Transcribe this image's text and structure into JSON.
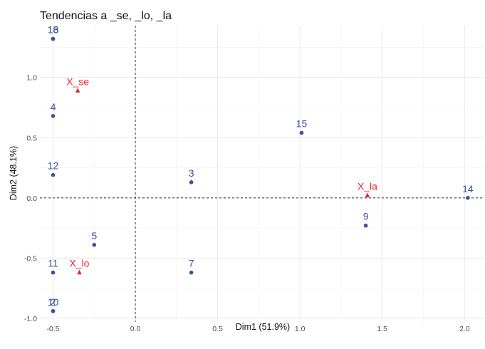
{
  "chart_data": {
    "type": "scatter",
    "title": "Tendencias a _se, _lo, _la",
    "xlabel": "Dim1 (51.9%)",
    "ylabel": "Dim2 (48.1%)",
    "xlim": [
      -0.58,
      2.12
    ],
    "ylim": [
      -1.03,
      1.43
    ],
    "x_ticks": [
      -0.5,
      0.0,
      0.5,
      1.0,
      1.5,
      2.0
    ],
    "x_tick_labels": [
      "-0.5",
      "0.0",
      "0.5",
      "1.0",
      "1.5",
      "2.0"
    ],
    "y_ticks": [
      -1.0,
      -0.5,
      0.0,
      0.5,
      1.0
    ],
    "y_tick_labels": [
      "-1.0",
      "-0.5",
      "0.0",
      "0.5",
      "1.0"
    ],
    "grid": true,
    "reference_lines": {
      "x": 0,
      "y": 0
    },
    "series": [
      {
        "color": "#3753a0",
        "marker": "circle",
        "points": [
          {
            "label": "16",
            "x": -0.5,
            "y": 1.32
          },
          {
            "label": "13",
            "x": -0.5,
            "y": 1.32
          },
          {
            "label": "4",
            "x": -0.5,
            "y": 0.68
          },
          {
            "label": "12",
            "x": -0.5,
            "y": 0.19
          },
          {
            "label": "11",
            "x": -0.5,
            "y": -0.62
          },
          {
            "label": "10",
            "x": -0.5,
            "y": -0.94
          },
          {
            "label": "2",
            "x": -0.5,
            "y": -0.94
          },
          {
            "label": "5",
            "x": -0.25,
            "y": -0.39
          },
          {
            "label": "3",
            "x": 0.34,
            "y": 0.13
          },
          {
            "label": "7",
            "x": 0.34,
            "y": -0.62
          },
          {
            "label": "15",
            "x": 1.01,
            "y": 0.54
          },
          {
            "label": "9",
            "x": 1.4,
            "y": -0.23
          },
          {
            "label": "14",
            "x": 2.02,
            "y": 0.0
          }
        ]
      },
      {
        "color": "#e8252b",
        "marker": "triangle",
        "points": [
          {
            "label": "X_se",
            "x": -0.35,
            "y": 0.89
          },
          {
            "label": "X_lo",
            "x": -0.34,
            "y": -0.62
          },
          {
            "label": "X_la",
            "x": 1.41,
            "y": 0.02
          }
        ]
      }
    ]
  }
}
